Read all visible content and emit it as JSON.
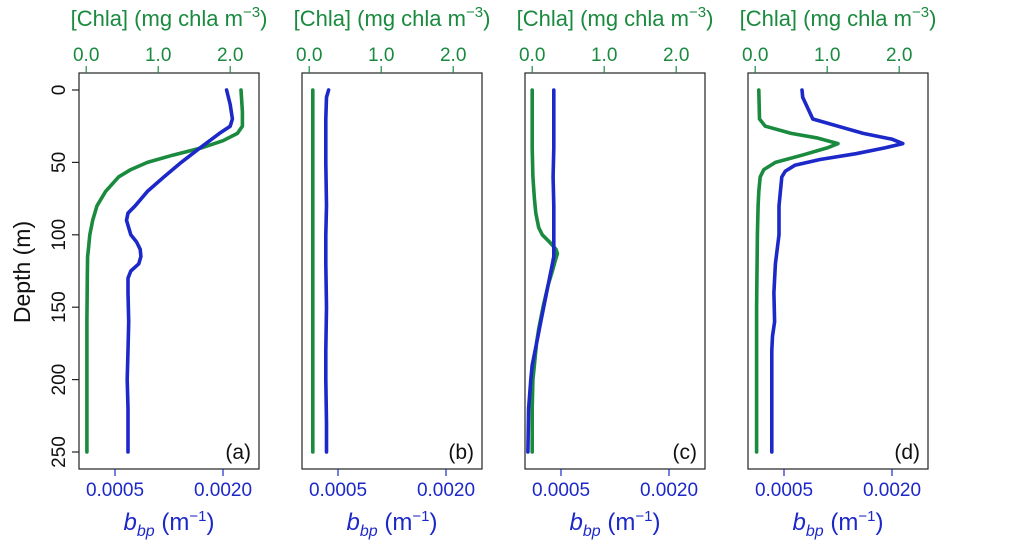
{
  "chart_data": {
    "type": "line",
    "ylabel": "Depth (m)",
    "ylim": [
      0,
      250
    ],
    "yticks": [
      0,
      50,
      100,
      150,
      200,
      250
    ],
    "y_inverted": true,
    "top_axis": {
      "label": "[Chla] (mg chla m⁻³)",
      "range": [
        -0.1,
        2.4
      ],
      "ticks": [
        0.0,
        1.0,
        2.0
      ],
      "tick_labels": [
        "0.0",
        "1.0",
        "2.0"
      ]
    },
    "bottom_axis": {
      "label": "b_bp (m⁻¹)",
      "range": [
        0.0,
        0.0025
      ],
      "ticks": [
        0.0005,
        0.002
      ],
      "tick_labels": [
        "0.0005",
        "0.0020"
      ]
    },
    "colors": {
      "chla": "#1a8a3f",
      "bbp": "#1c28c8"
    },
    "panels": [
      {
        "label": "(a)",
        "series": [
          {
            "name": "Chla",
            "depth": [
              0,
              15,
              25,
              30,
              35,
              40,
              45,
              50,
              55,
              60,
              70,
              80,
              90,
              100,
              110,
              115,
              130,
              160,
              200,
              250
            ],
            "values": [
              2.15,
              2.17,
              2.17,
              2.1,
              1.9,
              1.6,
              1.2,
              0.85,
              0.62,
              0.45,
              0.27,
              0.15,
              0.09,
              0.05,
              0.03,
              0.02,
              0.015,
              0.01,
              0.01,
              0.01
            ]
          },
          {
            "name": "bbp",
            "depth": [
              0,
              10,
              20,
              25,
              30,
              40,
              50,
              60,
              70,
              80,
              85,
              90,
              100,
              105,
              110,
              115,
              120,
              125,
              130,
              140,
              160,
              180,
              200,
              220,
              250
            ],
            "values": [
              0.00205,
              0.0021,
              0.00213,
              0.0021,
              0.00195,
              0.00168,
              0.00142,
              0.00118,
              0.00095,
              0.00078,
              0.00068,
              0.00066,
              0.00072,
              0.0008,
              0.00085,
              0.00086,
              0.00083,
              0.00072,
              0.00068,
              0.00068,
              0.00069,
              0.00068,
              0.00067,
              0.00068,
              0.00068
            ]
          }
        ]
      },
      {
        "label": "(b)",
        "series": [
          {
            "name": "Chla",
            "depth": [
              0,
              50,
              100,
              150,
              200,
              250
            ],
            "values": [
              0.05,
              0.05,
              0.05,
              0.05,
              0.05,
              0.05
            ]
          },
          {
            "name": "bbp",
            "depth": [
              0,
              5,
              20,
              50,
              80,
              100,
              120,
              150,
              180,
              200,
              230,
              250
            ],
            "values": [
              0.00037,
              0.00034,
              0.00033,
              0.00033,
              0.00034,
              0.00033,
              0.00033,
              0.00034,
              0.00033,
              0.00033,
              0.00034,
              0.00034
            ]
          }
        ]
      },
      {
        "label": "(c)",
        "series": [
          {
            "name": "Chla",
            "depth": [
              0,
              20,
              40,
              60,
              75,
              85,
              95,
              100,
              105,
              110,
              113,
              118,
              125,
              135,
              150,
              165,
              175,
              190,
              200,
              220,
              250
            ],
            "values": [
              0.0,
              0.0,
              0.0,
              0.01,
              0.03,
              0.05,
              0.09,
              0.14,
              0.24,
              0.33,
              0.35,
              0.32,
              0.28,
              0.22,
              0.15,
              0.09,
              0.06,
              0.03,
              0.01,
              0.0,
              0.0
            ]
          },
          {
            "name": "bbp",
            "depth": [
              0,
              20,
              40,
              60,
              80,
              100,
              110,
              115,
              120,
              130,
              140,
              150,
              160,
              170,
              180,
              190,
              200,
              220,
              250
            ],
            "values": [
              0.0004,
              0.0004,
              0.0004,
              0.00039,
              0.0004,
              0.0004,
              0.0004,
              0.0004,
              0.00038,
              0.00034,
              0.0003,
              0.00026,
              0.00022,
              0.00018,
              0.00014,
              0.0001,
              8e-05,
              5e-05,
              4e-05
            ]
          }
        ]
      },
      {
        "label": "(d)",
        "series": [
          {
            "name": "Chla",
            "depth": [
              0,
              20,
              25,
              30,
              33,
              37,
              40,
              45,
              50,
              55,
              60,
              70,
              80,
              100,
              150,
              200,
              250
            ],
            "values": [
              0.05,
              0.06,
              0.14,
              0.5,
              0.85,
              1.15,
              1.0,
              0.65,
              0.28,
              0.12,
              0.07,
              0.05,
              0.04,
              0.03,
              0.02,
              0.02,
              0.02
            ]
          },
          {
            "name": "bbp",
            "depth": [
              0,
              5,
              20,
              30,
              34,
              37,
              40,
              44,
              48,
              52,
              56,
              60,
              70,
              80,
              100,
              120,
              140,
              160,
              170,
              180,
              200,
              250
            ],
            "values": [
              0.00075,
              0.00076,
              0.0009,
              0.0016,
              0.002,
              0.00215,
              0.0019,
              0.0015,
              0.001,
              0.00065,
              0.00052,
              0.00047,
              0.00045,
              0.00043,
              0.00043,
              0.00038,
              0.00036,
              0.00037,
              0.00034,
              0.00033,
              0.00033,
              0.00033
            ]
          }
        ]
      }
    ]
  }
}
